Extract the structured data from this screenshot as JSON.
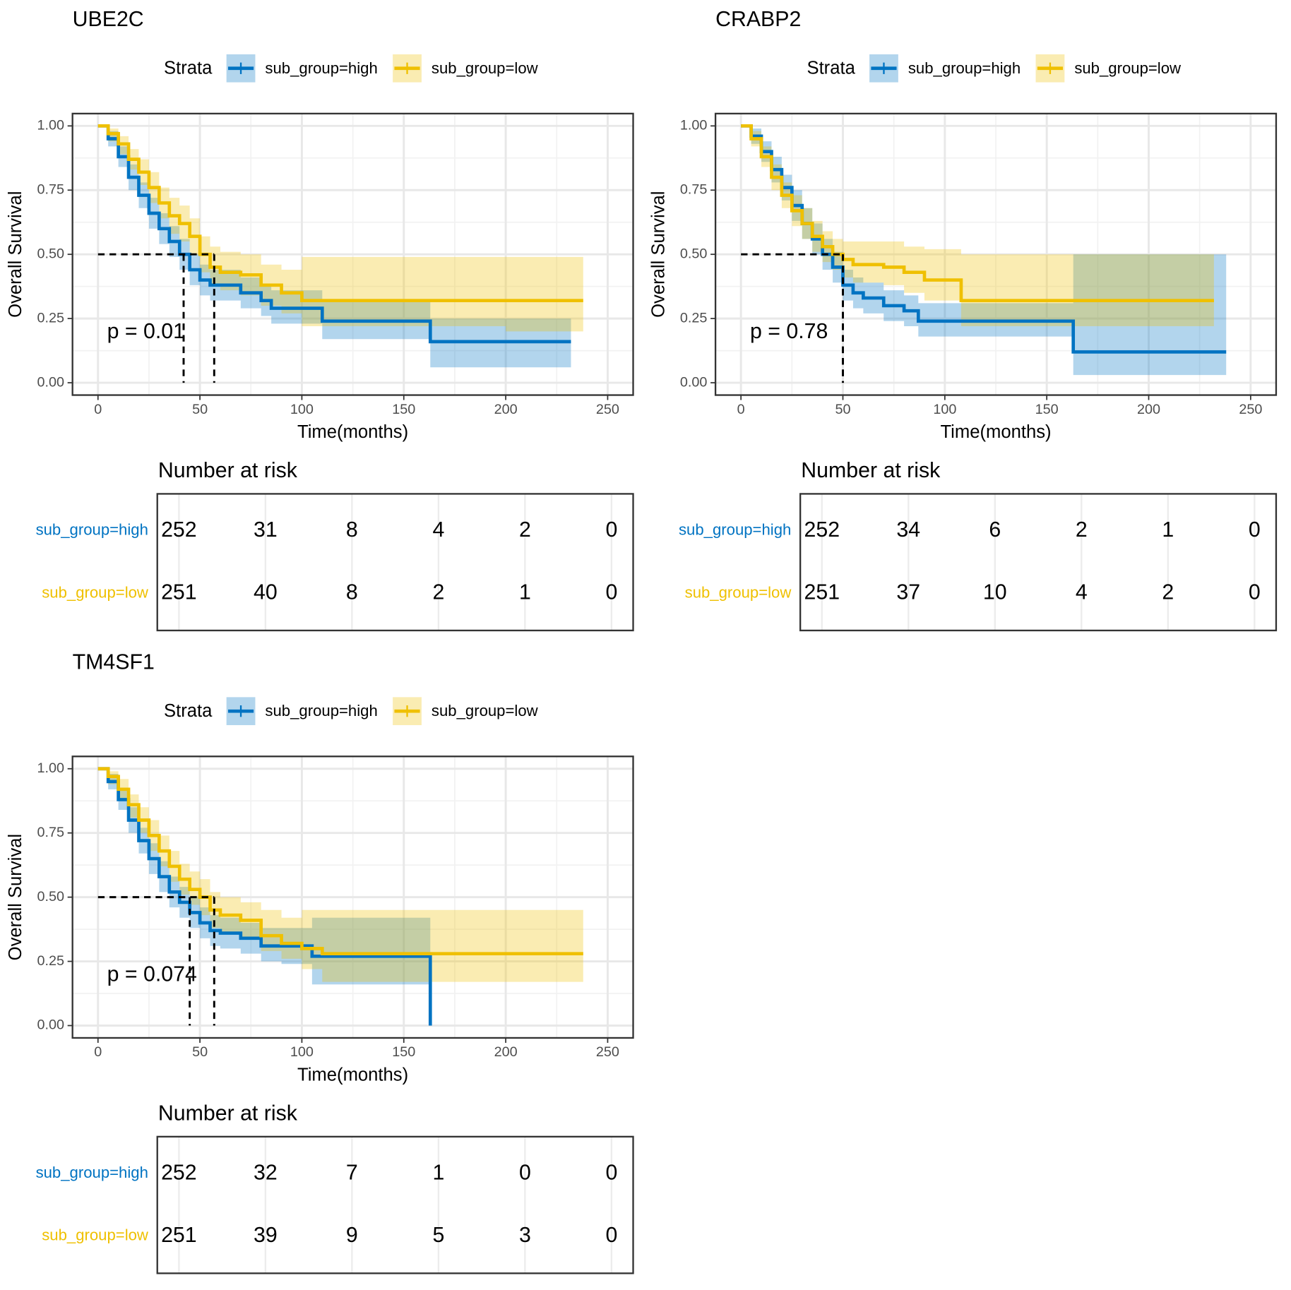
{
  "chart_data": [
    {
      "type": "line",
      "step": true,
      "title": "UBE2C",
      "legend_title": "Strata",
      "xlabel": "Time(months)",
      "ylabel": "Overall Survival",
      "annotation": "p = 0.01",
      "median": [
        42,
        57
      ],
      "grid": true,
      "xlim": [
        -12.5,
        262.5
      ],
      "xticks": [
        0,
        50,
        100,
        150,
        200,
        250
      ],
      "ylim": [
        -0.048,
        1.048
      ],
      "yticks": [
        {
          "value": 0,
          "label": "0.00"
        },
        {
          "value": 0.25,
          "label": "0.25"
        },
        {
          "value": 0.5,
          "label": "0.50"
        },
        {
          "value": 0.75,
          "label": "0.75"
        },
        {
          "value": 1,
          "label": "1.00"
        }
      ],
      "series": [
        {
          "name": "sub_group=high",
          "color": "#0073C2",
          "x": [
            0,
            5,
            10,
            15,
            20,
            25,
            30,
            35,
            40,
            45,
            50,
            55,
            60,
            70,
            80,
            85,
            100,
            110,
            130,
            150,
            163,
            200,
            232
          ],
          "values": [
            1,
            0.95,
            0.88,
            0.8,
            0.73,
            0.66,
            0.6,
            0.55,
            0.5,
            0.44,
            0.4,
            0.38,
            0.38,
            0.35,
            0.32,
            0.29,
            0.29,
            0.24,
            0.24,
            0.24,
            0.16,
            0.16,
            0.16
          ],
          "upper": [
            1,
            0.98,
            0.92,
            0.85,
            0.78,
            0.72,
            0.66,
            0.61,
            0.56,
            0.5,
            0.46,
            0.44,
            0.44,
            0.41,
            0.38,
            0.36,
            0.36,
            0.32,
            0.32,
            0.32,
            0.25,
            0.25,
            0.25
          ],
          "lower": [
            1,
            0.92,
            0.84,
            0.75,
            0.68,
            0.6,
            0.54,
            0.49,
            0.44,
            0.38,
            0.34,
            0.32,
            0.32,
            0.29,
            0.26,
            0.23,
            0.23,
            0.17,
            0.17,
            0.17,
            0.06,
            0.06,
            0.06
          ]
        },
        {
          "name": "sub_group=low",
          "color": "#EFC000",
          "x": [
            0,
            5,
            10,
            15,
            20,
            25,
            30,
            35,
            40,
            45,
            50,
            55,
            60,
            70,
            80,
            90,
            100,
            130,
            200,
            238
          ],
          "values": [
            1,
            0.97,
            0.93,
            0.87,
            0.82,
            0.76,
            0.7,
            0.65,
            0.62,
            0.57,
            0.5,
            0.45,
            0.43,
            0.42,
            0.38,
            0.35,
            0.32,
            0.32,
            0.32,
            0.32
          ],
          "upper": [
            1,
            0.99,
            0.96,
            0.91,
            0.87,
            0.82,
            0.76,
            0.72,
            0.69,
            0.64,
            0.57,
            0.53,
            0.51,
            0.5,
            0.46,
            0.44,
            0.49,
            0.49,
            0.49,
            0.49
          ],
          "lower": [
            1,
            0.94,
            0.89,
            0.83,
            0.77,
            0.7,
            0.64,
            0.58,
            0.55,
            0.5,
            0.43,
            0.38,
            0.36,
            0.34,
            0.3,
            0.27,
            0.22,
            0.22,
            0.2,
            0.2
          ]
        }
      ],
      "risk_table": {
        "title": "Number at risk",
        "rows": [
          [
            252,
            31,
            8,
            4,
            2,
            0
          ],
          [
            251,
            40,
            8,
            2,
            1,
            0
          ]
        ]
      }
    },
    {
      "type": "line",
      "step": true,
      "title": "CRABP2",
      "legend_title": "Strata",
      "xlabel": "Time(months)",
      "ylabel": "Overall Survival",
      "annotation": "p = 0.78",
      "median": [
        50,
        50
      ],
      "grid": true,
      "xlim": [
        -12.5,
        262.5
      ],
      "xticks": [
        0,
        50,
        100,
        150,
        200,
        250
      ],
      "ylim": [
        -0.048,
        1.048
      ],
      "yticks": [
        {
          "value": 0,
          "label": "0.00"
        },
        {
          "value": 0.25,
          "label": "0.25"
        },
        {
          "value": 0.5,
          "label": "0.50"
        },
        {
          "value": 0.75,
          "label": "0.75"
        },
        {
          "value": 1,
          "label": "1.00"
        }
      ],
      "series": [
        {
          "name": "sub_group=high",
          "color": "#0073C2",
          "x": [
            0,
            5,
            10,
            15,
            20,
            25,
            30,
            35,
            40,
            45,
            50,
            55,
            60,
            70,
            80,
            87,
            100,
            125,
            163,
            238
          ],
          "values": [
            1,
            0.96,
            0.9,
            0.83,
            0.76,
            0.69,
            0.62,
            0.56,
            0.5,
            0.45,
            0.38,
            0.35,
            0.33,
            0.3,
            0.28,
            0.24,
            0.24,
            0.24,
            0.12,
            0.12
          ],
          "upper": [
            1,
            0.99,
            0.94,
            0.88,
            0.81,
            0.75,
            0.68,
            0.62,
            0.56,
            0.51,
            0.44,
            0.41,
            0.39,
            0.36,
            0.34,
            0.31,
            0.31,
            0.31,
            0.5,
            0.5
          ],
          "lower": [
            1,
            0.93,
            0.86,
            0.78,
            0.71,
            0.63,
            0.56,
            0.5,
            0.44,
            0.39,
            0.32,
            0.29,
            0.27,
            0.24,
            0.22,
            0.18,
            0.18,
            0.18,
            0.03,
            0.03
          ]
        },
        {
          "name": "sub_group=low",
          "color": "#EFC000",
          "x": [
            0,
            5,
            10,
            15,
            20,
            25,
            30,
            35,
            40,
            45,
            50,
            55,
            60,
            70,
            80,
            90,
            100,
            108,
            125,
            150,
            200,
            232
          ],
          "values": [
            1,
            0.95,
            0.88,
            0.8,
            0.73,
            0.67,
            0.62,
            0.57,
            0.53,
            0.5,
            0.48,
            0.46,
            0.46,
            0.45,
            0.43,
            0.4,
            0.4,
            0.32,
            0.32,
            0.32,
            0.32,
            0.32
          ],
          "upper": [
            1,
            0.98,
            0.92,
            0.85,
            0.78,
            0.73,
            0.68,
            0.63,
            0.59,
            0.56,
            0.55,
            0.55,
            0.55,
            0.55,
            0.53,
            0.52,
            0.52,
            0.5,
            0.5,
            0.5,
            0.5,
            0.5
          ],
          "lower": [
            1,
            0.92,
            0.84,
            0.75,
            0.68,
            0.61,
            0.56,
            0.51,
            0.47,
            0.44,
            0.41,
            0.39,
            0.39,
            0.38,
            0.35,
            0.32,
            0.32,
            0.22,
            0.22,
            0.22,
            0.22,
            0.22
          ]
        }
      ],
      "risk_table": {
        "title": "Number at risk",
        "rows": [
          [
            252,
            34,
            6,
            2,
            1,
            0
          ],
          [
            251,
            37,
            10,
            4,
            2,
            0
          ]
        ]
      }
    },
    {
      "type": "line",
      "step": true,
      "title": "TM4SF1",
      "legend_title": "Strata",
      "xlabel": "Time(months)",
      "ylabel": "Overall Survival",
      "annotation": "p = 0.074",
      "median": [
        45,
        57
      ],
      "grid": true,
      "xlim": [
        -12.5,
        262.5
      ],
      "xticks": [
        0,
        50,
        100,
        150,
        200,
        250
      ],
      "ylim": [
        -0.048,
        1.048
      ],
      "yticks": [
        {
          "value": 0,
          "label": "0.00"
        },
        {
          "value": 0.25,
          "label": "0.25"
        },
        {
          "value": 0.5,
          "label": "0.50"
        },
        {
          "value": 0.75,
          "label": "0.75"
        },
        {
          "value": 1,
          "label": "1.00"
        }
      ],
      "series": [
        {
          "name": "sub_group=high",
          "color": "#0073C2",
          "x": [
            0,
            5,
            10,
            15,
            20,
            25,
            30,
            35,
            40,
            45,
            50,
            55,
            60,
            70,
            80,
            90,
            105,
            130,
            163
          ],
          "values": [
            1,
            0.95,
            0.88,
            0.8,
            0.72,
            0.65,
            0.58,
            0.52,
            0.48,
            0.44,
            0.4,
            0.37,
            0.36,
            0.34,
            0.31,
            0.31,
            0.27,
            0.27,
            0
          ],
          "upper": [
            1,
            0.98,
            0.92,
            0.85,
            0.77,
            0.71,
            0.64,
            0.58,
            0.54,
            0.5,
            0.46,
            0.43,
            0.42,
            0.4,
            0.38,
            0.38,
            0.42,
            0.42,
            0
          ],
          "lower": [
            1,
            0.92,
            0.84,
            0.75,
            0.67,
            0.59,
            0.52,
            0.46,
            0.42,
            0.38,
            0.34,
            0.31,
            0.3,
            0.28,
            0.25,
            0.24,
            0.16,
            0.16,
            0
          ]
        },
        {
          "name": "sub_group=low",
          "color": "#EFC000",
          "x": [
            0,
            5,
            10,
            15,
            20,
            25,
            30,
            35,
            40,
            45,
            50,
            55,
            60,
            70,
            80,
            90,
            100,
            110,
            163,
            238
          ],
          "values": [
            1,
            0.97,
            0.92,
            0.86,
            0.8,
            0.74,
            0.68,
            0.62,
            0.57,
            0.53,
            0.5,
            0.45,
            0.43,
            0.41,
            0.35,
            0.32,
            0.3,
            0.28,
            0.28,
            0.28
          ],
          "upper": [
            1,
            0.99,
            0.96,
            0.9,
            0.85,
            0.8,
            0.74,
            0.68,
            0.63,
            0.6,
            0.57,
            0.52,
            0.5,
            0.48,
            0.45,
            0.42,
            0.45,
            0.45,
            0.45,
            0.45
          ],
          "lower": [
            1,
            0.94,
            0.88,
            0.81,
            0.75,
            0.68,
            0.62,
            0.56,
            0.51,
            0.47,
            0.43,
            0.38,
            0.36,
            0.34,
            0.29,
            0.26,
            0.22,
            0.17,
            0.17,
            0.17
          ]
        }
      ],
      "risk_table": {
        "title": "Number at risk",
        "rows": [
          [
            252,
            32,
            7,
            1,
            0,
            0
          ],
          [
            251,
            39,
            9,
            5,
            3,
            0
          ]
        ]
      }
    }
  ]
}
